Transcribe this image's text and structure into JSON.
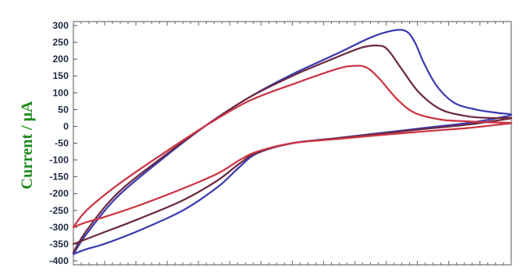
{
  "chart_data": {
    "type": "line",
    "title": "",
    "xlabel": "",
    "ylabel": "Current / μA",
    "ylim": [
      -400,
      300
    ],
    "yticks": [
      300,
      250,
      200,
      150,
      100,
      50,
      0,
      -50,
      -100,
      -150,
      -200,
      -250,
      -300,
      -350,
      -400
    ],
    "xlim": [
      0,
      1
    ],
    "grid": false,
    "legend": "none",
    "series": [
      {
        "color": "#3a3ab0",
        "x": [
          0.0,
          0.03,
          0.1,
          0.2,
          0.3,
          0.4,
          0.5,
          0.6,
          0.68,
          0.73,
          0.76,
          0.78,
          0.8,
          0.83,
          0.87,
          0.92,
          0.97,
          1.0,
          0.97,
          0.9,
          0.8,
          0.7,
          0.6,
          0.5,
          0.42,
          0.38,
          0.33,
          0.25,
          0.15,
          0.07,
          0.03,
          0.0
        ],
        "y": [
          -380,
          -320,
          -210,
          -100,
          0,
          85,
          155,
          215,
          265,
          285,
          283,
          250,
          190,
          120,
          70,
          50,
          40,
          35,
          25,
          10,
          -5,
          -20,
          -35,
          -50,
          -80,
          -120,
          -180,
          -250,
          -310,
          -350,
          -365,
          -380
        ]
      },
      {
        "color": "#6b2a40",
        "x": [
          0.0,
          0.03,
          0.1,
          0.2,
          0.3,
          0.4,
          0.5,
          0.6,
          0.66,
          0.7,
          0.72,
          0.75,
          0.79,
          0.84,
          0.9,
          0.95,
          1.0,
          0.97,
          0.9,
          0.8,
          0.7,
          0.6,
          0.5,
          0.42,
          0.38,
          0.33,
          0.25,
          0.15,
          0.07,
          0.03,
          0.0
        ],
        "y": [
          -375,
          -310,
          -200,
          -95,
          0,
          85,
          150,
          205,
          235,
          240,
          225,
          170,
          100,
          50,
          30,
          25,
          25,
          18,
          5,
          -8,
          -22,
          -36,
          -50,
          -78,
          -110,
          -160,
          -220,
          -275,
          -315,
          -335,
          -350
        ]
      },
      {
        "color": "#cc3344",
        "x": [
          0.0,
          0.03,
          0.1,
          0.2,
          0.3,
          0.4,
          0.5,
          0.6,
          0.64,
          0.67,
          0.7,
          0.74,
          0.78,
          0.84,
          0.9,
          0.95,
          1.0,
          0.97,
          0.9,
          0.8,
          0.7,
          0.6,
          0.5,
          0.42,
          0.38,
          0.33,
          0.25,
          0.15,
          0.07,
          0.03,
          0.0
        ],
        "y": [
          -300,
          -250,
          -175,
          -85,
          0,
          75,
          125,
          170,
          180,
          175,
          140,
          80,
          40,
          20,
          15,
          12,
          10,
          5,
          -5,
          -15,
          -26,
          -38,
          -50,
          -75,
          -100,
          -140,
          -185,
          -235,
          -270,
          -285,
          -300
        ]
      }
    ]
  }
}
